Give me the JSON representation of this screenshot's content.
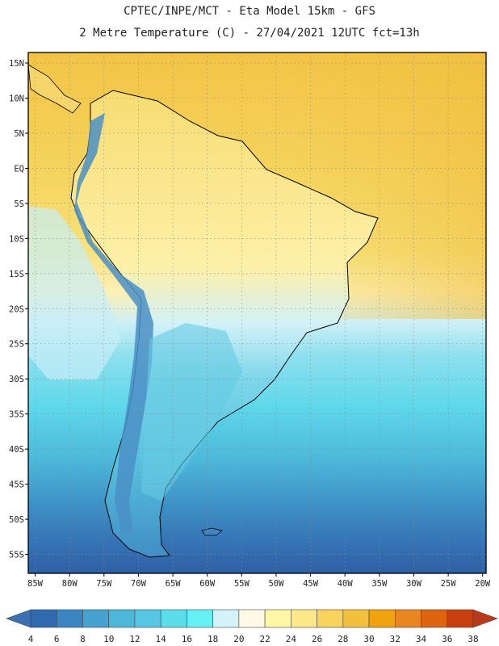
{
  "header": {
    "line1": "CPTEC/INPE/MCT -  Eta Model 15km - GFS",
    "line2": "2 Metre Temperature (C) - 27/04/2021 12UTC fct=13h"
  },
  "chart_data": {
    "type": "heatmap",
    "title": "2 Metre Temperature (C) - 27/04/2021 12UTC fct=13h",
    "variable": "2 Metre Temperature (C)",
    "x_axis": {
      "ticks": [
        -85,
        -80,
        -75,
        -70,
        -65,
        -60,
        -55,
        -50,
        -45,
        -40,
        -35,
        -30,
        -25,
        -20
      ],
      "labels": [
        "85W",
        "80W",
        "75W",
        "70W",
        "65W",
        "60W",
        "55W",
        "50W",
        "45W",
        "40W",
        "35W",
        "30W",
        "25W",
        "20W"
      ],
      "range": [
        -86,
        -19.5
      ]
    },
    "y_axis": {
      "ticks": [
        15,
        10,
        5,
        0,
        -5,
        -10,
        -15,
        -20,
        -25,
        -30,
        -35,
        -40,
        -45,
        -50,
        -55
      ],
      "labels": [
        "15N",
        "10N",
        "5N",
        "EQ",
        "5S",
        "10S",
        "15S",
        "20S",
        "25S",
        "30S",
        "35S",
        "40S",
        "45S",
        "50S",
        "55S"
      ],
      "range": [
        -57.7,
        16.5
      ]
    },
    "grid": true,
    "colorbar": {
      "levels": [
        4,
        6,
        8,
        10,
        12,
        14,
        16,
        18,
        20,
        22,
        24,
        26,
        28,
        30,
        32,
        34,
        36,
        38
      ],
      "labels": [
        "4",
        "6",
        "8",
        "10",
        "12",
        "14",
        "16",
        "18",
        "20",
        "22",
        "24",
        "26",
        "28",
        "30",
        "32",
        "34",
        "36",
        "38"
      ],
      "colors": [
        "#3B6FB0",
        "#2F6BAE",
        "#3B86C0",
        "#46A2CF",
        "#4DB7DA",
        "#56C6E2",
        "#5BDDEA",
        "#66F0F5",
        "#D2F3FA",
        "#FFF9E6",
        "#FFF6A6",
        "#FDE88A",
        "#F8D45E",
        "#F2C03D",
        "#F0A30E",
        "#E98620",
        "#DE6410",
        "#C94010",
        "#B83A1A"
      ]
    }
  }
}
